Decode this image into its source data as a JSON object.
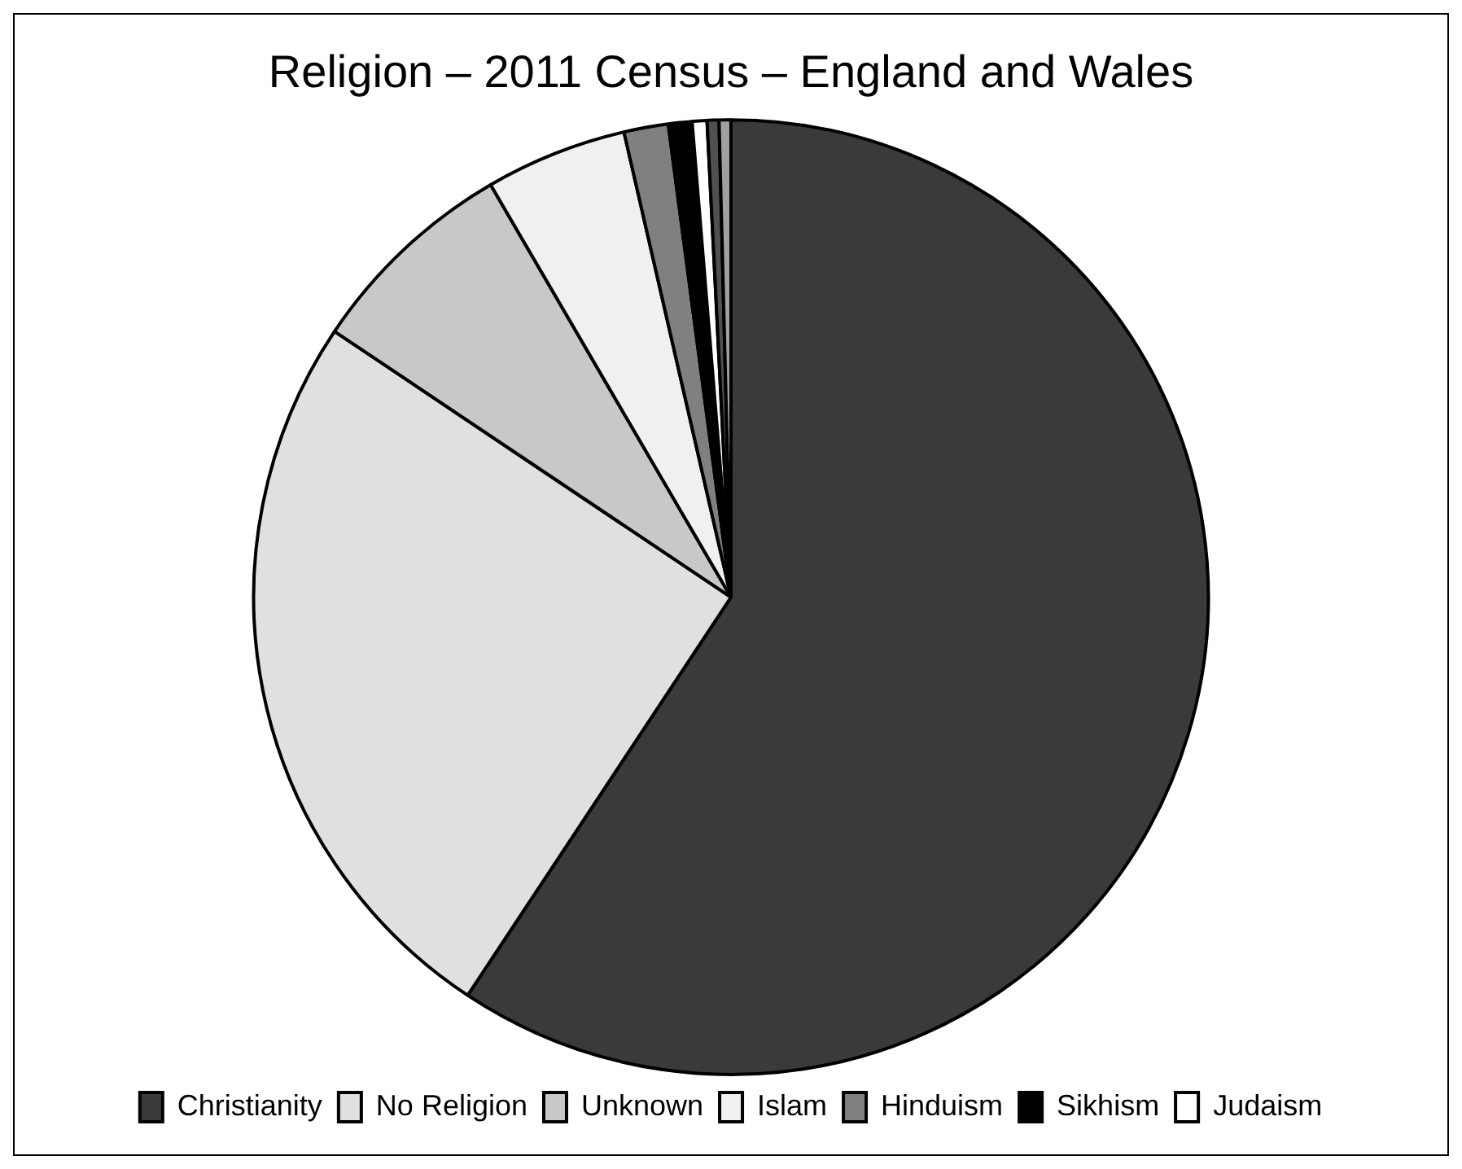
{
  "chart_data": {
    "type": "pie",
    "title": "Religion – 2011 Census – England and Wales",
    "categories": [
      "Christianity",
      "No Religion",
      "Unknown",
      "Islam",
      "Hinduism",
      "Sikhism",
      "Judaism",
      null,
      null
    ],
    "values": [
      59.3,
      25.1,
      7.2,
      4.8,
      1.5,
      0.8,
      0.5,
      0.4,
      0.4
    ],
    "colors": [
      "#3a3a3a",
      "#e0e0e0",
      "#c8c8c8",
      "#f0f0f0",
      "#808080",
      "#000000",
      "#ffffff",
      "#505050",
      "#a0a0a0"
    ],
    "legend": "bottom"
  }
}
